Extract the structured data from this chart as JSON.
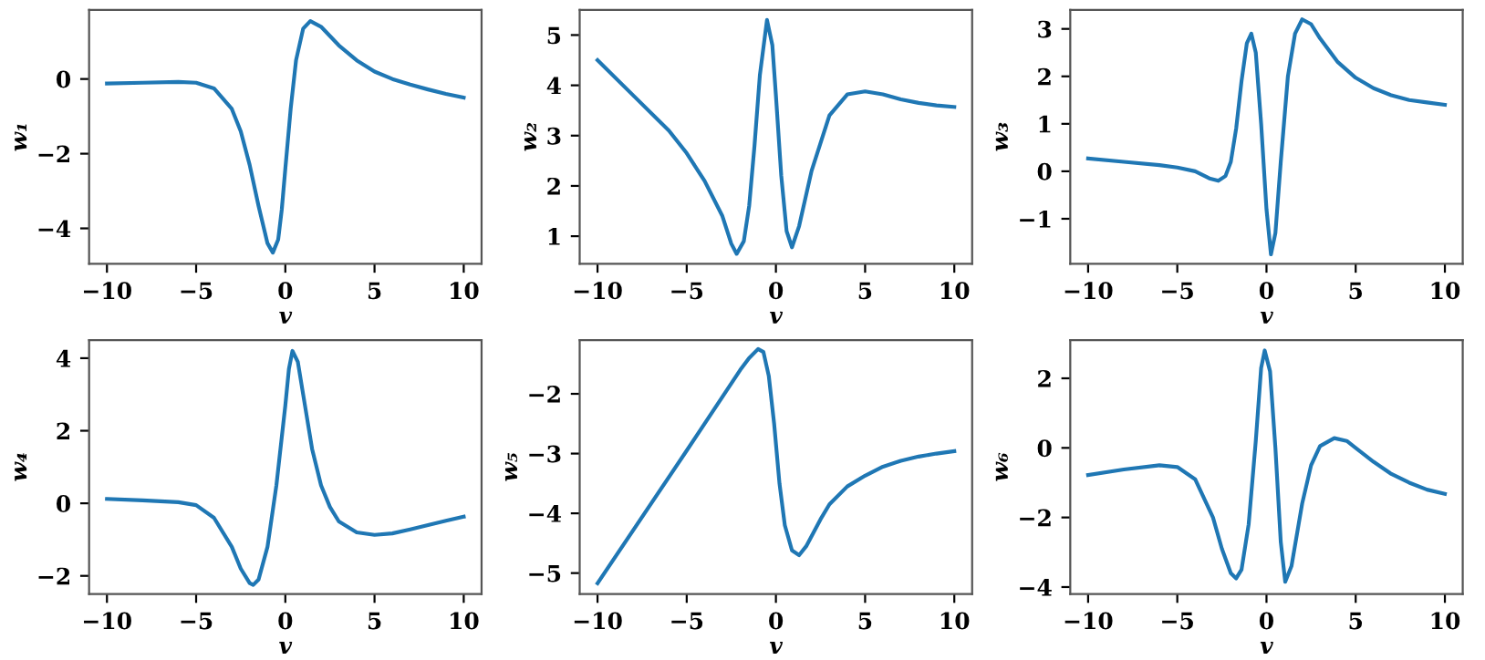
{
  "chart_data": [
    {
      "type": "line",
      "xlabel": "v",
      "ylabel": "w₁",
      "xlim": [
        -11,
        11
      ],
      "xticks": [
        -10,
        -5,
        0,
        5,
        10
      ],
      "ylim": [
        -4.95,
        1.85
      ],
      "yticks": [
        -4,
        -2,
        0
      ],
      "grid": false,
      "legend": false,
      "series": [
        {
          "color": "#1f77b4",
          "x": [
            -10,
            -8,
            -6,
            -5,
            -4,
            -3,
            -2.5,
            -2,
            -1.5,
            -1,
            -0.7,
            -0.4,
            -0.2,
            0,
            0.3,
            0.6,
            1,
            1.4,
            2,
            3,
            4,
            5,
            6,
            7,
            8,
            9,
            10
          ],
          "values": [
            -0.12,
            -0.1,
            -0.08,
            -0.1,
            -0.25,
            -0.8,
            -1.4,
            -2.3,
            -3.4,
            -4.4,
            -4.65,
            -4.3,
            -3.5,
            -2.4,
            -0.8,
            0.5,
            1.35,
            1.55,
            1.4,
            0.9,
            0.5,
            0.2,
            0,
            -0.15,
            -0.28,
            -0.4,
            -0.5
          ]
        }
      ]
    },
    {
      "type": "line",
      "xlabel": "v",
      "ylabel": "w₂",
      "xlim": [
        -11,
        11
      ],
      "xticks": [
        -10,
        -5,
        0,
        5,
        10
      ],
      "ylim": [
        0.45,
        5.5
      ],
      "yticks": [
        1,
        2,
        3,
        4,
        5
      ],
      "grid": false,
      "legend": false,
      "series": [
        {
          "color": "#1f77b4",
          "x": [
            -10,
            -8,
            -6,
            -5,
            -4,
            -3,
            -2.5,
            -2.2,
            -1.8,
            -1.5,
            -1.2,
            -0.9,
            -0.5,
            -0.2,
            0,
            0.3,
            0.6,
            0.9,
            1.3,
            2,
            3,
            4,
            5,
            6,
            7,
            8,
            9,
            10
          ],
          "values": [
            4.5,
            3.8,
            3.1,
            2.65,
            2.1,
            1.4,
            0.85,
            0.65,
            0.9,
            1.6,
            2.8,
            4.2,
            5.3,
            4.8,
            3.8,
            2.2,
            1.1,
            0.78,
            1.2,
            2.3,
            3.4,
            3.82,
            3.88,
            3.82,
            3.72,
            3.65,
            3.6,
            3.57
          ]
        }
      ]
    },
    {
      "type": "line",
      "xlabel": "v",
      "ylabel": "w₃",
      "xlim": [
        -11,
        11
      ],
      "xticks": [
        -10,
        -5,
        0,
        5,
        10
      ],
      "ylim": [
        -1.95,
        3.4
      ],
      "yticks": [
        -1,
        0,
        1,
        2,
        3
      ],
      "grid": false,
      "legend": false,
      "series": [
        {
          "color": "#1f77b4",
          "x": [
            -10,
            -8,
            -6,
            -5,
            -4,
            -3.2,
            -2.7,
            -2.3,
            -2,
            -1.7,
            -1.4,
            -1.1,
            -0.85,
            -0.6,
            -0.3,
            0,
            0.25,
            0.5,
            0.8,
            1.2,
            1.6,
            2,
            2.5,
            3,
            4,
            5,
            6,
            7,
            8,
            9,
            10
          ],
          "values": [
            0.27,
            0.2,
            0.13,
            0.08,
            0,
            -0.15,
            -0.2,
            -0.1,
            0.2,
            0.9,
            1.9,
            2.7,
            2.9,
            2.5,
            1.0,
            -0.8,
            -1.75,
            -1.3,
            0.2,
            2.0,
            2.9,
            3.2,
            3.1,
            2.8,
            2.3,
            1.97,
            1.75,
            1.6,
            1.5,
            1.45,
            1.4
          ]
        }
      ]
    },
    {
      "type": "line",
      "xlabel": "v",
      "ylabel": "w₄",
      "xlim": [
        -11,
        11
      ],
      "xticks": [
        -10,
        -5,
        0,
        5,
        10
      ],
      "ylim": [
        -2.5,
        4.5
      ],
      "yticks": [
        -2,
        0,
        2,
        4
      ],
      "grid": false,
      "legend": false,
      "series": [
        {
          "color": "#1f77b4",
          "x": [
            -10,
            -8,
            -6,
            -5,
            -4,
            -3,
            -2.5,
            -2,
            -1.8,
            -1.5,
            -1,
            -0.5,
            0,
            0.2,
            0.4,
            0.7,
            1,
            1.5,
            2,
            2.5,
            3,
            4,
            5,
            6,
            7,
            8,
            9,
            10
          ],
          "values": [
            0.12,
            0.08,
            0.03,
            -0.05,
            -0.4,
            -1.2,
            -1.8,
            -2.2,
            -2.25,
            -2.1,
            -1.2,
            0.5,
            2.7,
            3.7,
            4.2,
            3.9,
            3.0,
            1.5,
            0.5,
            -0.1,
            -0.5,
            -0.8,
            -0.87,
            -0.83,
            -0.72,
            -0.6,
            -0.48,
            -0.37
          ]
        }
      ]
    },
    {
      "type": "line",
      "xlabel": "v",
      "ylabel": "w₅",
      "xlim": [
        -11,
        11
      ],
      "xticks": [
        -10,
        -5,
        0,
        5,
        10
      ],
      "ylim": [
        -5.35,
        -1.1
      ],
      "yticks": [
        -5,
        -4,
        -3,
        -2
      ],
      "grid": false,
      "legend": false,
      "series": [
        {
          "color": "#1f77b4",
          "x": [
            -10,
            -5,
            -2,
            -1.5,
            -1,
            -0.7,
            -0.4,
            -0.1,
            0.2,
            0.5,
            0.9,
            1.3,
            1.7,
            2.5,
            3,
            4,
            5,
            6,
            7,
            8,
            9,
            10
          ],
          "values": [
            -5.17,
            -2.95,
            -1.6,
            -1.4,
            -1.25,
            -1.3,
            -1.7,
            -2.5,
            -3.5,
            -4.2,
            -4.62,
            -4.7,
            -4.55,
            -4.1,
            -3.85,
            -3.55,
            -3.37,
            -3.22,
            -3.12,
            -3.05,
            -3.0,
            -2.96
          ]
        }
      ]
    },
    {
      "type": "line",
      "xlabel": "v",
      "ylabel": "w₆",
      "xlim": [
        -11,
        11
      ],
      "xticks": [
        -10,
        -5,
        0,
        5,
        10
      ],
      "ylim": [
        -4.2,
        3.1
      ],
      "yticks": [
        -4,
        -2,
        0,
        2
      ],
      "grid": false,
      "legend": false,
      "series": [
        {
          "color": "#1f77b4",
          "x": [
            -10,
            -8,
            -6,
            -5,
            -4,
            -3,
            -2.5,
            -2,
            -1.7,
            -1.4,
            -1,
            -0.6,
            -0.3,
            -0.1,
            0.2,
            0.5,
            0.8,
            1.05,
            1.4,
            2,
            2.5,
            3,
            3.8,
            4.5,
            5,
            6,
            7,
            8,
            9,
            10
          ],
          "values": [
            -0.78,
            -0.62,
            -0.5,
            -0.55,
            -0.9,
            -2.0,
            -2.9,
            -3.6,
            -3.75,
            -3.5,
            -2.2,
            0.2,
            2.3,
            2.8,
            2.2,
            0.0,
            -2.7,
            -3.85,
            -3.4,
            -1.6,
            -0.5,
            0.05,
            0.28,
            0.2,
            0.0,
            -0.4,
            -0.75,
            -1.0,
            -1.2,
            -1.32
          ]
        }
      ]
    }
  ]
}
